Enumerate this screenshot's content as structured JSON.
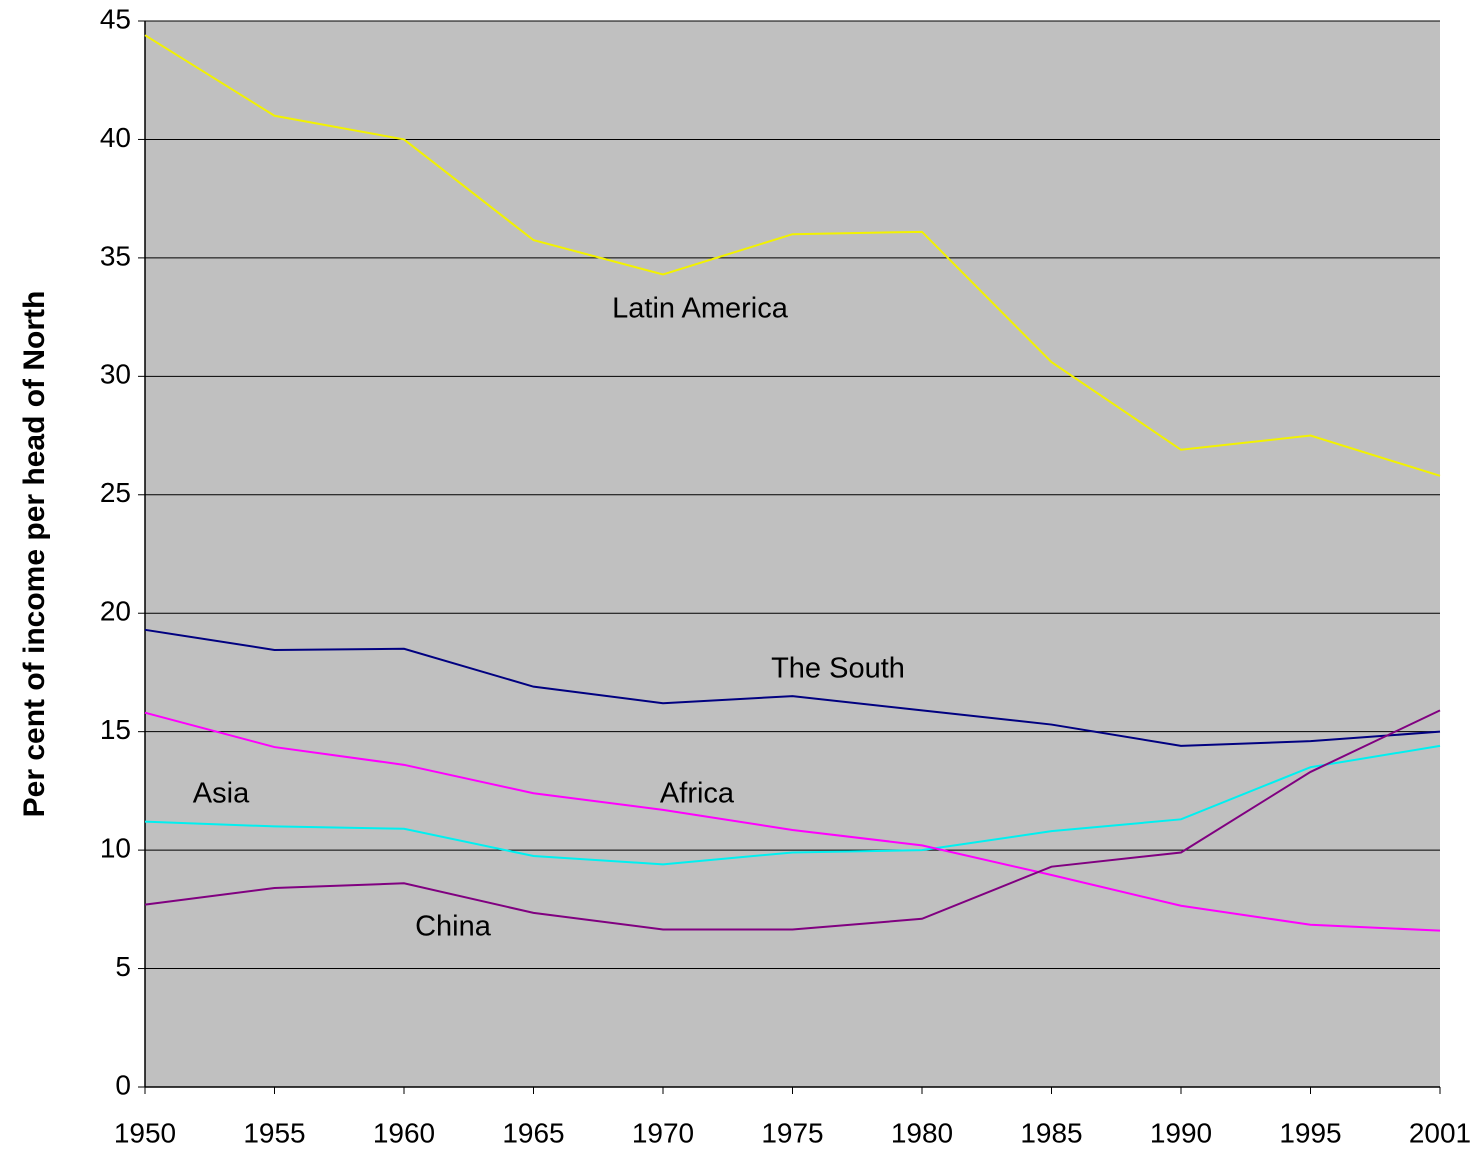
{
  "chart_data": {
    "type": "line",
    "y_label": "Per cent of income per head of North",
    "categories": [
      "1950",
      "1955",
      "1960",
      "1965",
      "1970",
      "1975",
      "1980",
      "1985",
      "1990",
      "1995",
      "2001"
    ],
    "series": [
      {
        "name": "Latin America",
        "color": "#f2f200",
        "values": [
          44.4,
          41.0,
          40.0,
          35.75,
          34.3,
          36.0,
          36.1,
          30.6,
          26.9,
          27.5,
          25.8
        ]
      },
      {
        "name": "The South",
        "color": "#000080",
        "values": [
          19.3,
          18.45,
          18.5,
          16.9,
          16.2,
          16.5,
          15.9,
          15.3,
          14.4,
          14.6,
          15.0
        ]
      },
      {
        "name": "Asia",
        "color": "#00f0f0",
        "values": [
          11.2,
          11.0,
          10.9,
          9.75,
          9.4,
          9.9,
          10.0,
          10.8,
          11.3,
          13.5,
          14.4
        ]
      },
      {
        "name": "Africa",
        "color": "#ff00ff",
        "values": [
          15.8,
          14.35,
          13.6,
          12.4,
          11.7,
          10.85,
          10.2,
          8.95,
          7.65,
          6.85,
          6.6
        ]
      },
      {
        "name": "China",
        "color": "#800080",
        "values": [
          7.7,
          8.4,
          8.6,
          7.35,
          6.65,
          6.65,
          7.1,
          9.3,
          9.9,
          13.3,
          15.9
        ]
      }
    ],
    "ylim": [
      0,
      45
    ],
    "yticks": [
      0,
      5,
      10,
      15,
      20,
      25,
      30,
      35,
      40,
      45
    ],
    "grid": true,
    "background": "#c0c0c0"
  }
}
